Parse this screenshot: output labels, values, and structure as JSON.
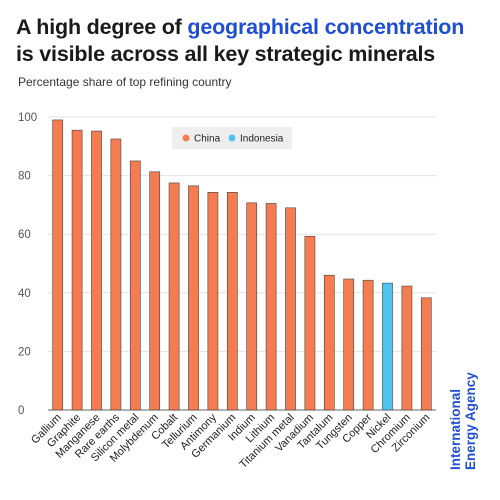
{
  "title": {
    "part1": "A high degree of ",
    "highlight": "geographical concentration",
    "part2": "is visible across all key strategic minerals"
  },
  "subtitle": "Percentage share of top refining country",
  "brand": {
    "line1": "International",
    "line2": "Energy Agency"
  },
  "colors": {
    "china": "#f47c50",
    "indonesia": "#4fc3ef",
    "highlight": "#1f4fd1"
  },
  "chart_data": {
    "type": "bar",
    "categories": [
      "Gallium",
      "Graphite",
      "Manganese",
      "Rare earths",
      "Silicon metal",
      "Molybdenum",
      "Cobalt",
      "Tellurium",
      "Antimony",
      "Germanium",
      "Indium",
      "Lithium",
      "Titanium metal",
      "Vanadium",
      "Tantalum",
      "Tungsten",
      "Copper",
      "Nickel",
      "Chromium",
      "Zirconium"
    ],
    "values": [
      99,
      95.5,
      95.2,
      92.5,
      85,
      81.3,
      77.5,
      76.5,
      74.3,
      74.3,
      70.7,
      70.5,
      69,
      59.3,
      46,
      44.7,
      44.3,
      43.3,
      42.3,
      38.3
    ],
    "country": [
      "China",
      "China",
      "China",
      "China",
      "China",
      "China",
      "China",
      "China",
      "China",
      "China",
      "China",
      "China",
      "China",
      "China",
      "China",
      "China",
      "China",
      "Indonesia",
      "China",
      "China"
    ],
    "legend": [
      {
        "name": "China",
        "color": "#f47c50"
      },
      {
        "name": "Indonesia",
        "color": "#4fc3ef"
      }
    ],
    "legend_position": "top-center",
    "ylim": [
      0,
      100
    ],
    "yticks": [
      0,
      20,
      40,
      60,
      80,
      100
    ],
    "grid": true,
    "xlabel": "",
    "ylabel": ""
  }
}
